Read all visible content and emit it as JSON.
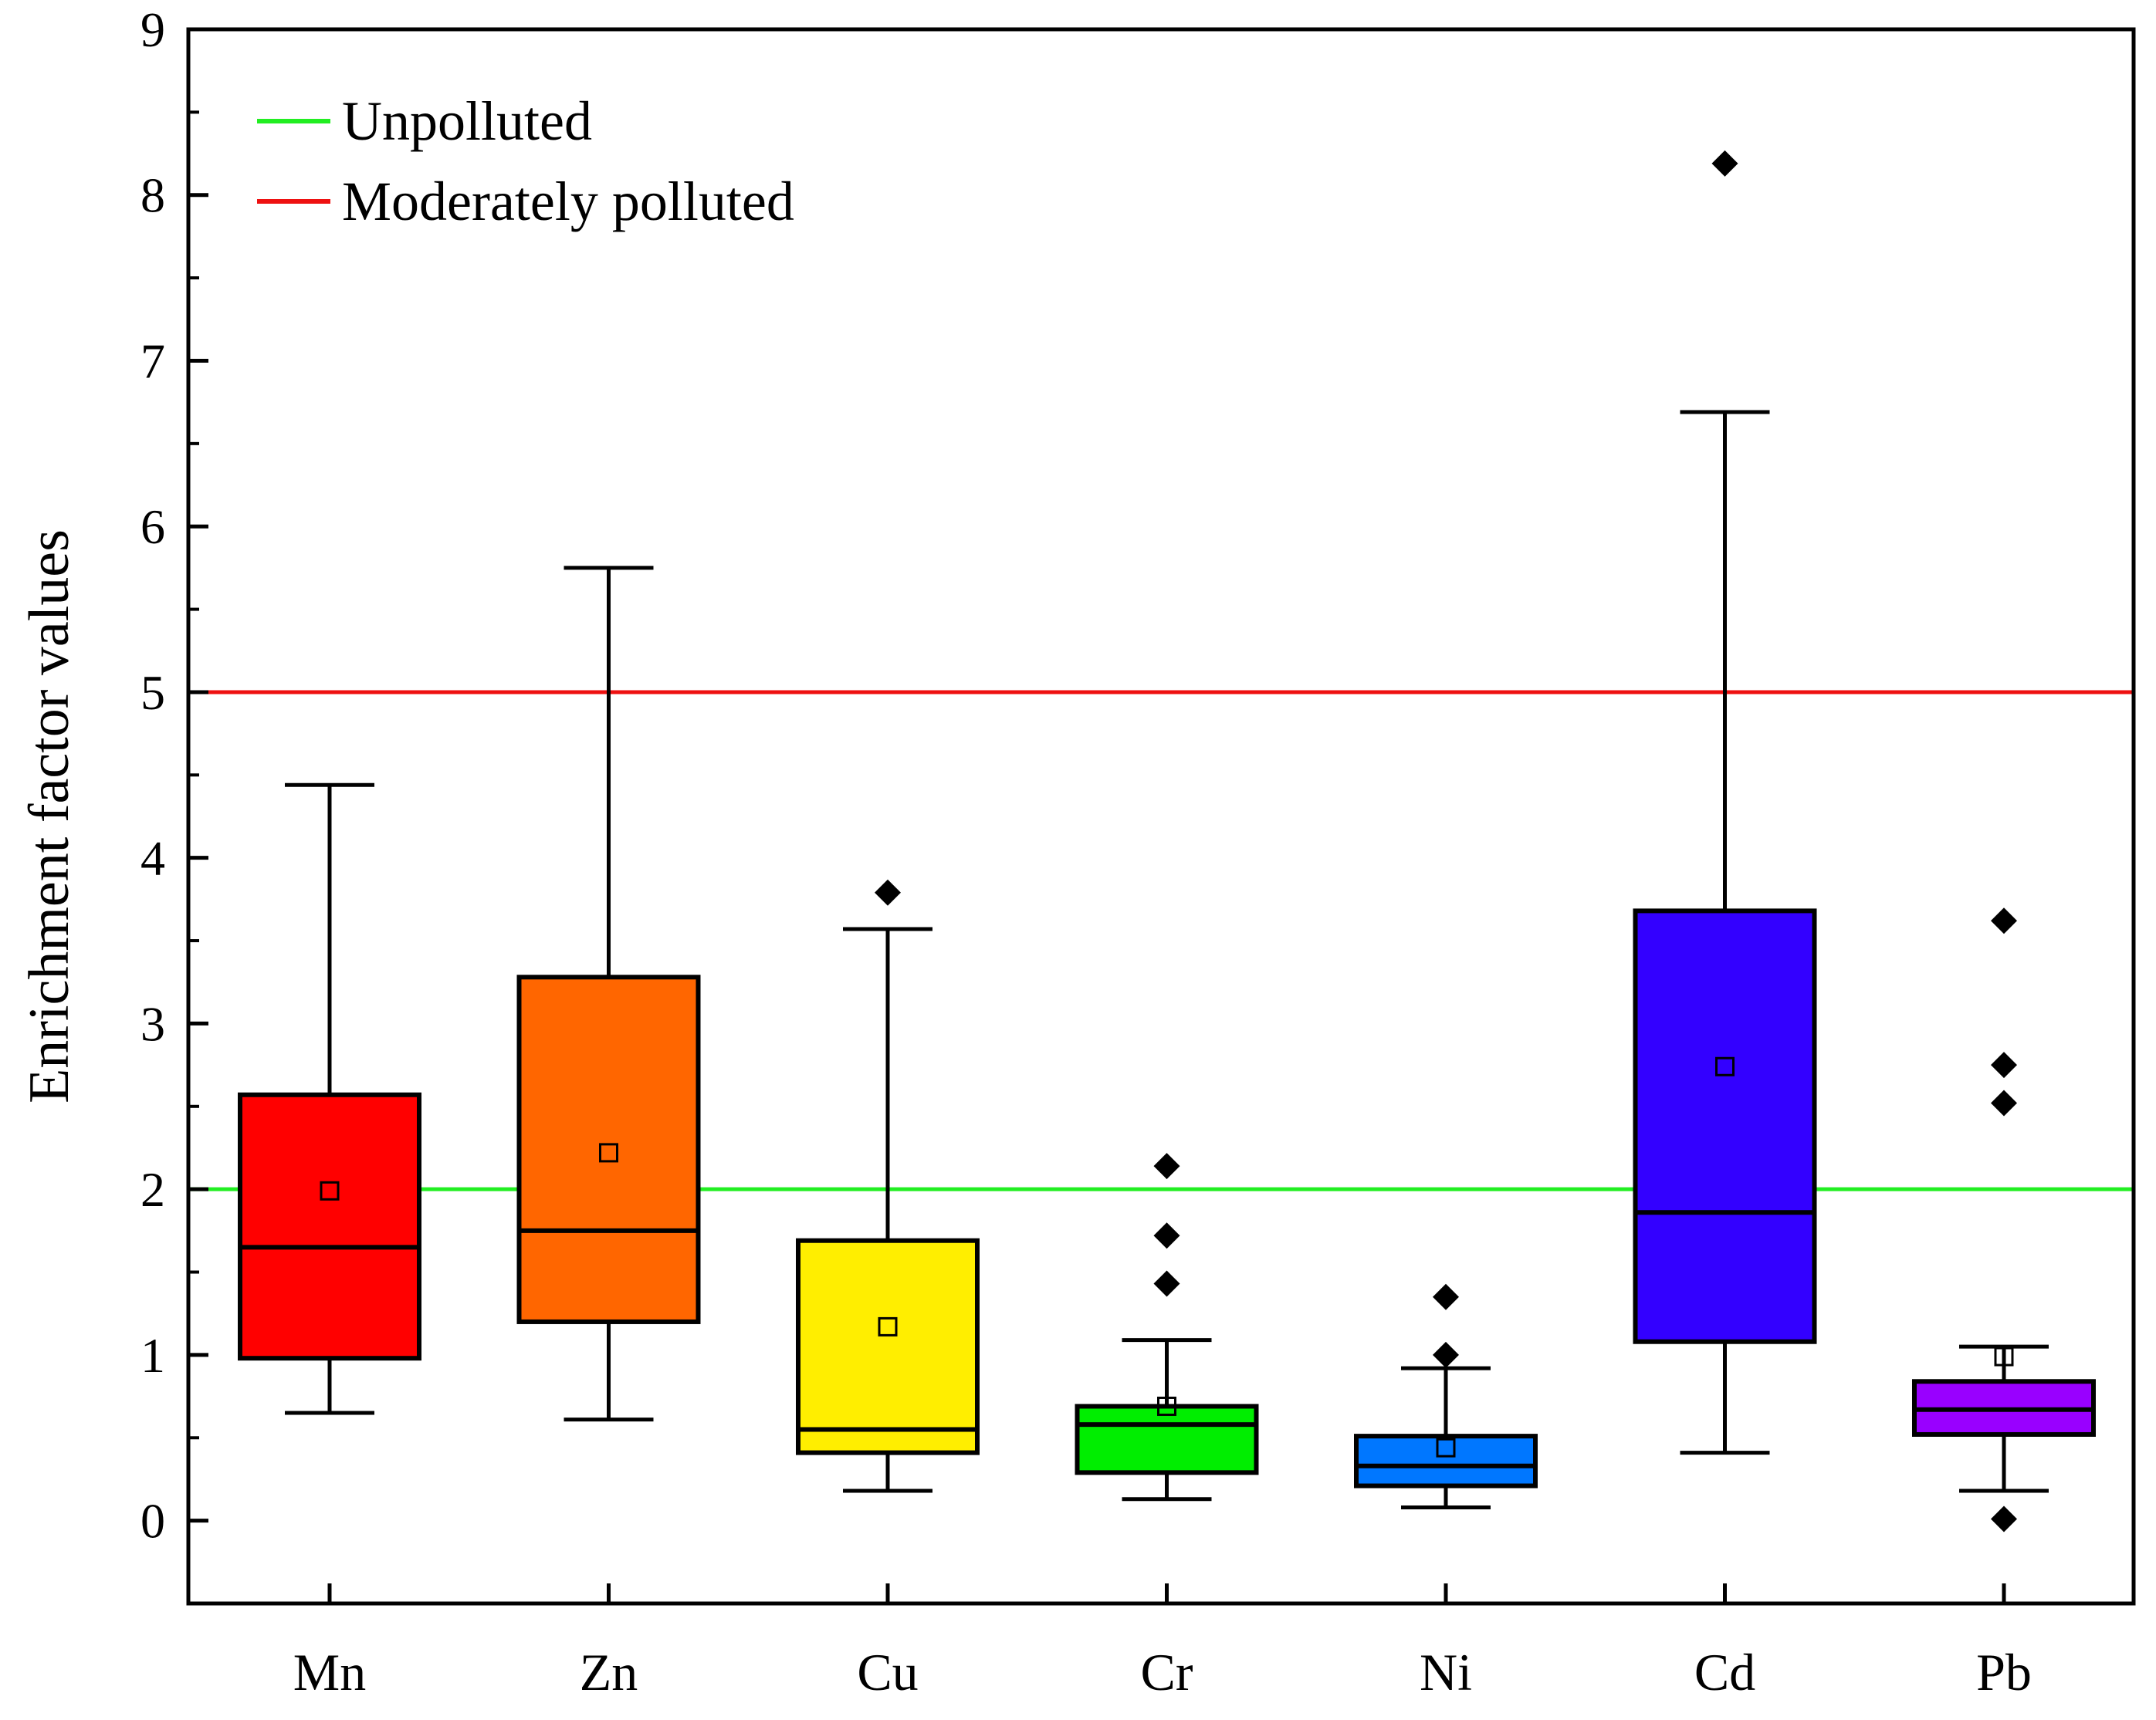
{
  "chart_data": {
    "type": "box",
    "title": "",
    "xlabel": "",
    "ylabel": "Enrichment factor values",
    "ylim": [
      -0.5,
      9
    ],
    "yticks": [
      0,
      1,
      2,
      3,
      4,
      5,
      6,
      7,
      8,
      9
    ],
    "categories": [
      "Mn",
      "Zn",
      "Cu",
      "Cr",
      "Ni",
      "Cd",
      "Pb"
    ],
    "boxes": [
      {
        "name": "Mn",
        "color": "#ff0000",
        "whisker_low": 0.65,
        "q1": 0.98,
        "median": 1.65,
        "q3": 2.57,
        "whisker_high": 4.44,
        "mean": 1.99,
        "outliers": []
      },
      {
        "name": "Zn",
        "color": "#ff6600",
        "whisker_low": 0.61,
        "q1": 1.2,
        "median": 1.75,
        "q3": 3.28,
        "whisker_high": 5.75,
        "mean": 2.22,
        "outliers": []
      },
      {
        "name": "Cu",
        "color": "#ffee00",
        "whisker_low": 0.18,
        "q1": 0.41,
        "median": 0.55,
        "q3": 1.69,
        "whisker_high": 3.57,
        "mean": 1.17,
        "outliers": [
          3.79
        ]
      },
      {
        "name": "Cr",
        "color": "#00ee00",
        "whisker_low": 0.13,
        "q1": 0.29,
        "median": 0.58,
        "q3": 0.69,
        "whisker_high": 1.09,
        "mean": 0.69,
        "outliers": [
          1.43,
          1.72,
          2.14
        ]
      },
      {
        "name": "Ni",
        "color": "#0077ff",
        "whisker_low": 0.08,
        "q1": 0.21,
        "median": 0.33,
        "q3": 0.51,
        "whisker_high": 0.92,
        "mean": 0.44,
        "outliers": [
          1.0,
          1.35
        ]
      },
      {
        "name": "Cd",
        "color": "#3300ff",
        "whisker_low": 0.41,
        "q1": 1.08,
        "median": 1.86,
        "q3": 3.68,
        "whisker_high": 6.69,
        "mean": 2.74,
        "outliers": [
          8.19
        ]
      },
      {
        "name": "Pb",
        "color": "#9900ff",
        "whisker_low": 0.18,
        "q1": 0.52,
        "median": 0.67,
        "q3": 0.84,
        "whisker_high": 1.05,
        "mean": 0.99,
        "outliers": [
          0.01,
          2.52,
          2.75,
          3.62
        ]
      }
    ],
    "reference_lines": [
      {
        "label": "Unpolluted",
        "value": 2,
        "color": "#22ee22"
      },
      {
        "label": "Moderately polluted",
        "value": 5,
        "color": "#ee1111"
      }
    ],
    "legend_position": "top-left"
  }
}
